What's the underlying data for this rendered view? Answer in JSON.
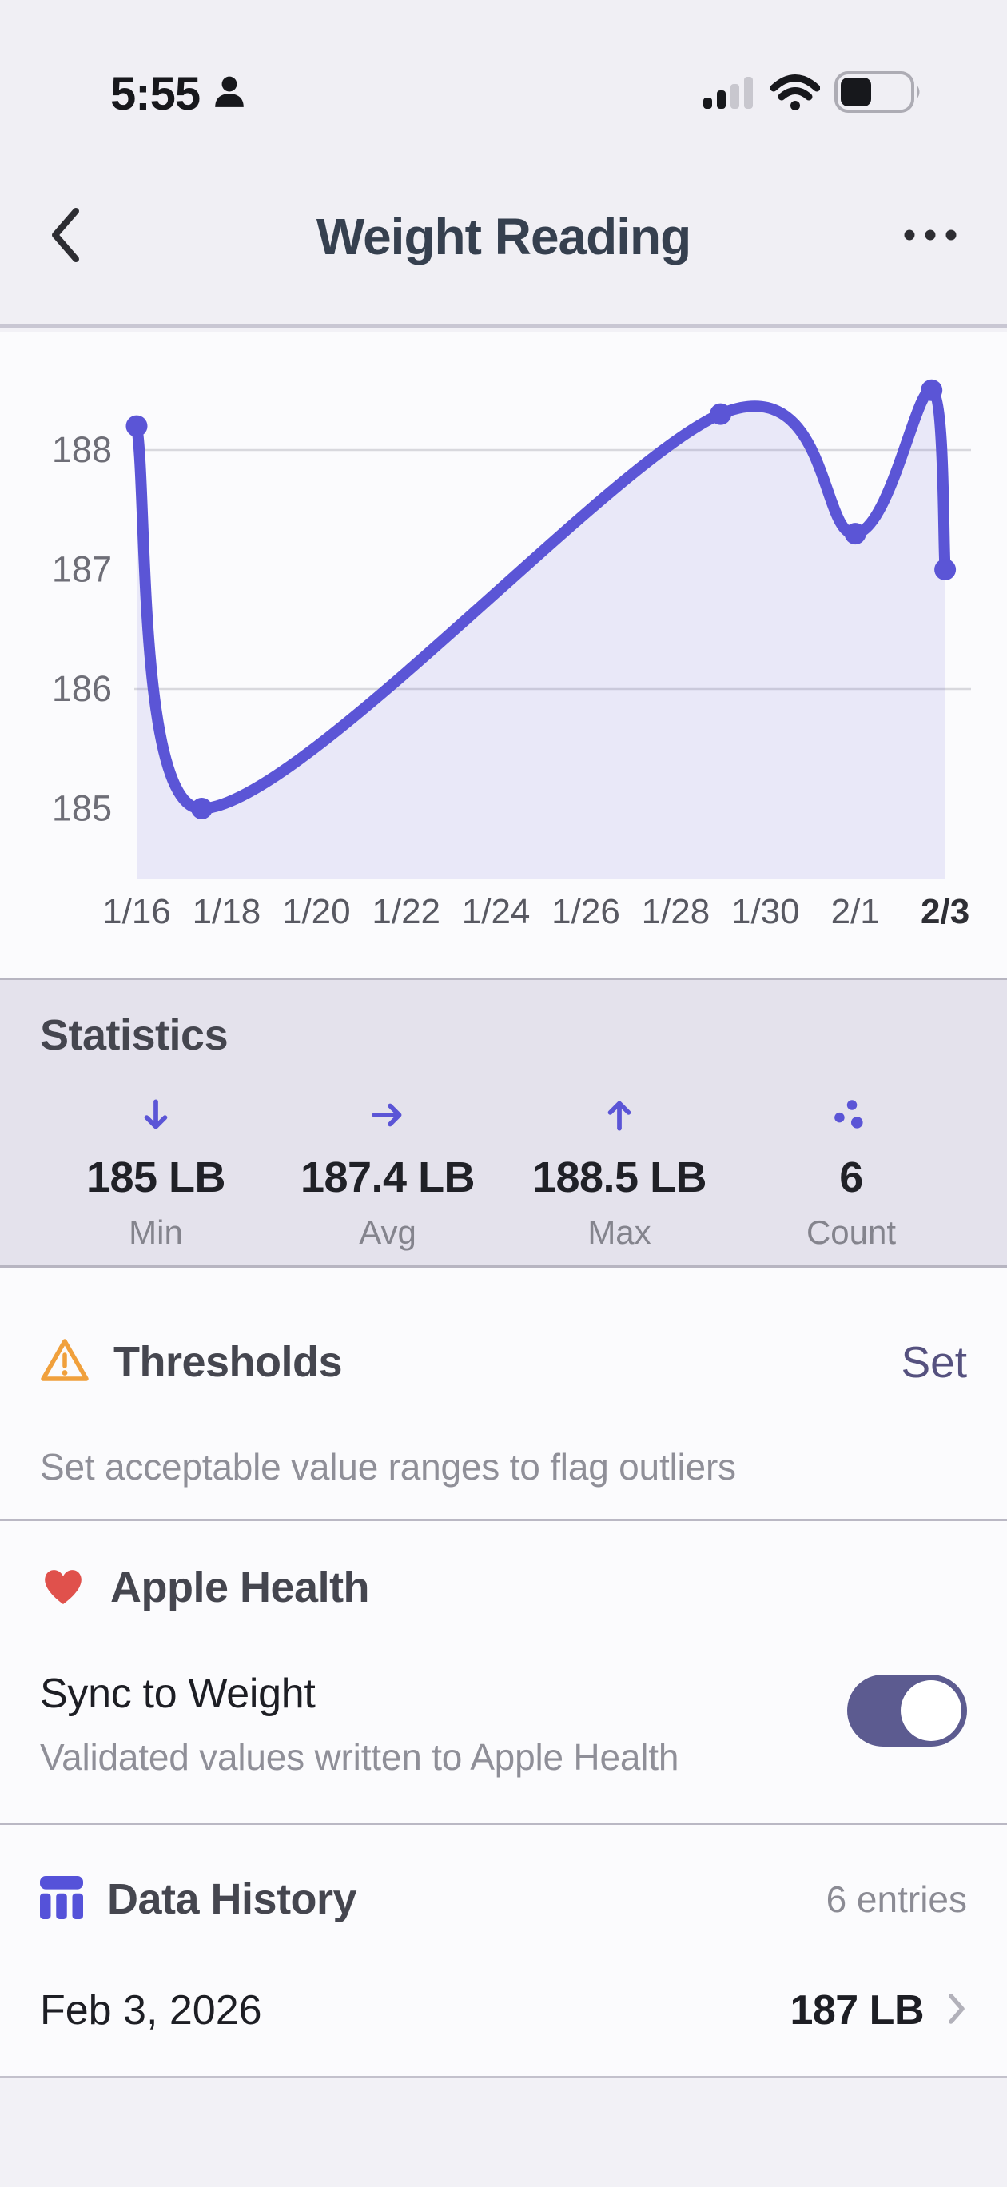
{
  "status_bar": {
    "time": "5:55",
    "signal_bars_filled": 2,
    "signal_bars_total": 4,
    "battery_fill": 0.45
  },
  "header": {
    "title": "Weight Reading"
  },
  "chart_data": {
    "type": "line",
    "title": "Weight Reading chart",
    "unit": "LB",
    "series": [
      {
        "name": "Weight",
        "points": [
          {
            "x": "1/16",
            "day": 0,
            "value": 188.2
          },
          {
            "x": "1/17",
            "day": 1.45,
            "value": 185.0
          },
          {
            "x": "1/29",
            "day": 13,
            "value": 188.3
          },
          {
            "x": "2/1",
            "day": 16,
            "value": 187.3
          },
          {
            "x": "2/2",
            "day": 17.7,
            "value": 188.5
          },
          {
            "x": "2/3",
            "day": 18,
            "value": 187.0
          }
        ]
      }
    ],
    "x_ticks": [
      {
        "label": "1/16",
        "day": 0
      },
      {
        "label": "1/18",
        "day": 2
      },
      {
        "label": "1/20",
        "day": 4
      },
      {
        "label": "1/22",
        "day": 6
      },
      {
        "label": "1/24",
        "day": 8
      },
      {
        "label": "1/26",
        "day": 10
      },
      {
        "label": "1/28",
        "day": 12
      },
      {
        "label": "1/30",
        "day": 14
      },
      {
        "label": "2/1",
        "day": 16
      },
      {
        "label": "2/3",
        "day": 18,
        "bold": true
      }
    ],
    "y_ticks": [
      188,
      187,
      186,
      185
    ],
    "gridline_values": [
      188,
      186
    ],
    "ylim": [
      184.4,
      189.0
    ],
    "grid": true,
    "legend": false
  },
  "statistics": {
    "title": "Statistics",
    "items": [
      {
        "icon": "arrow-down",
        "value": "185 LB",
        "label": "Min"
      },
      {
        "icon": "arrow-right",
        "value": "187.4 LB",
        "label": "Avg"
      },
      {
        "icon": "arrow-up",
        "value": "188.5 LB",
        "label": "Max"
      },
      {
        "icon": "dots",
        "value": "6",
        "label": "Count"
      }
    ]
  },
  "thresholds": {
    "title": "Thresholds",
    "action": "Set",
    "description": "Set acceptable value ranges to flag outliers"
  },
  "apple_health": {
    "title": "Apple Health",
    "toggle_label": "Sync to Weight",
    "toggle_description": "Validated values written to Apple Health",
    "toggle_on": true
  },
  "data_history": {
    "title": "Data History",
    "count_label": "6 entries",
    "rows": [
      {
        "date": "Feb 3, 2026",
        "value": "187 LB"
      }
    ]
  },
  "colors": {
    "accent": "#5b55d6",
    "area_fill": "rgba(91,85,214,0.11)",
    "gridline": "#d8d8dd",
    "toggle_on": "#5c5b90",
    "set_link": "#55517f",
    "warning": "#f0a03c",
    "heart": "#e0514c",
    "history_icon": "#5552d9",
    "stats_bg": "#e4e2ec"
  }
}
